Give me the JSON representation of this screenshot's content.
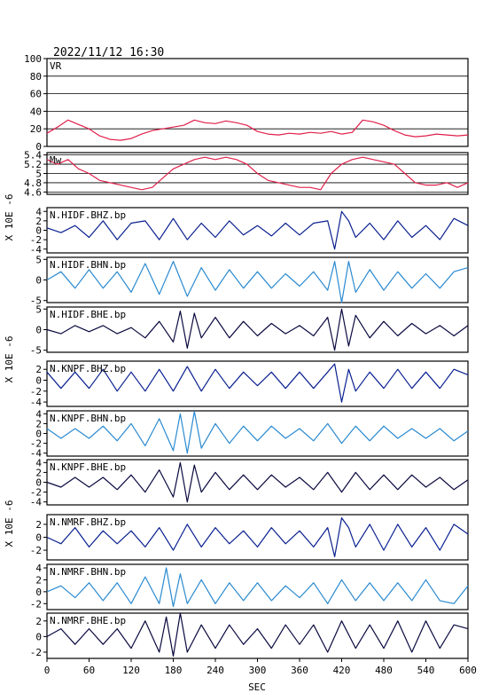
{
  "title": "2022/11/12 16:30",
  "xaxis": {
    "label": "SEC",
    "range": [
      0,
      600
    ],
    "ticks": [
      0,
      60,
      120,
      180,
      240,
      300,
      360,
      420,
      480,
      540,
      600
    ]
  },
  "ylabel_traces": "X 10E -6",
  "chart_data": [
    {
      "type": "line",
      "label": "VR",
      "color": "#e0204a",
      "gridlines": [
        20,
        40,
        60,
        80
      ],
      "ylim": [
        0,
        100
      ],
      "yticks": [
        0,
        20,
        40,
        60,
        80,
        100
      ],
      "x": [
        0,
        15,
        30,
        45,
        60,
        75,
        90,
        105,
        120,
        135,
        150,
        165,
        180,
        195,
        210,
        225,
        240,
        255,
        270,
        285,
        300,
        315,
        330,
        345,
        360,
        375,
        390,
        405,
        420,
        435,
        450,
        465,
        480,
        495,
        510,
        525,
        540,
        555,
        570,
        585,
        600
      ],
      "values": [
        15,
        22,
        30,
        25,
        20,
        12,
        8,
        7,
        9,
        14,
        18,
        20,
        22,
        24,
        30,
        27,
        26,
        29,
        27,
        24,
        17,
        14,
        13,
        15,
        14,
        16,
        15,
        17,
        14,
        16,
        30,
        28,
        24,
        18,
        13,
        11,
        12,
        14,
        13,
        12,
        13
      ]
    },
    {
      "type": "line",
      "label": "Mw",
      "color": "#e0204a",
      "gridlines": [
        4.6,
        4.8,
        5.0,
        5.2,
        5.4
      ],
      "ylim": [
        4.55,
        5.45
      ],
      "yticks": [
        4.6,
        4.8,
        5.0,
        5.2,
        5.4
      ],
      "x": [
        0,
        15,
        30,
        45,
        60,
        75,
        90,
        105,
        120,
        135,
        150,
        165,
        180,
        195,
        210,
        225,
        240,
        255,
        270,
        285,
        300,
        315,
        330,
        345,
        360,
        375,
        390,
        405,
        420,
        435,
        450,
        465,
        480,
        495,
        510,
        525,
        540,
        555,
        570,
        585,
        600
      ],
      "values": [
        5.3,
        5.2,
        5.3,
        5.1,
        5.0,
        4.85,
        4.8,
        4.75,
        4.7,
        4.65,
        4.7,
        4.9,
        5.1,
        5.2,
        5.3,
        5.35,
        5.3,
        5.35,
        5.3,
        5.2,
        5.0,
        4.85,
        4.8,
        4.75,
        4.7,
        4.7,
        4.65,
        5.0,
        5.2,
        5.3,
        5.35,
        5.3,
        5.25,
        5.2,
        5.0,
        4.8,
        4.75,
        4.75,
        4.8,
        4.7,
        4.8
      ]
    },
    {
      "type": "line",
      "label": "N.HIDF.BHZ.bp",
      "color": "#0a2090",
      "ylim": [
        -4.8,
        4.8
      ],
      "yticks": [
        -4,
        -2,
        0,
        2,
        4
      ],
      "x": [
        0,
        20,
        40,
        60,
        80,
        100,
        120,
        140,
        160,
        180,
        200,
        220,
        240,
        260,
        280,
        300,
        320,
        340,
        360,
        380,
        400,
        410,
        420,
        430,
        440,
        460,
        480,
        500,
        520,
        540,
        560,
        580,
        600
      ],
      "values": [
        0.5,
        -0.5,
        1.0,
        -1.5,
        2.0,
        -2.0,
        1.5,
        2.0,
        -2.0,
        2.5,
        -2.0,
        1.5,
        -1.5,
        2.0,
        -1.0,
        1.0,
        -1.2,
        1.5,
        -1.0,
        1.5,
        2.0,
        -4.0,
        4.0,
        2.0,
        -1.5,
        1.5,
        -2.0,
        2.0,
        -1.5,
        1.0,
        -2.0,
        2.5,
        1.0
      ]
    },
    {
      "type": "line",
      "label": "N.HIDF.BHN.bp",
      "color": "#2a8ad0",
      "ylim": [
        -5.5,
        5.5
      ],
      "yticks": [
        -5,
        0,
        5
      ],
      "x": [
        0,
        20,
        40,
        60,
        80,
        100,
        120,
        140,
        160,
        180,
        200,
        220,
        240,
        260,
        280,
        300,
        320,
        340,
        360,
        380,
        400,
        410,
        420,
        430,
        440,
        460,
        480,
        500,
        520,
        540,
        560,
        580,
        600
      ],
      "values": [
        0.0,
        2.0,
        -2.0,
        2.5,
        -2.0,
        2.0,
        -3.0,
        4.0,
        -3.5,
        4.5,
        -4.0,
        3.0,
        -2.5,
        2.5,
        -2.0,
        2.0,
        -2.0,
        1.5,
        -1.5,
        2.0,
        -2.5,
        4.5,
        -5.5,
        4.5,
        -3.0,
        2.5,
        -2.5,
        2.0,
        -2.0,
        1.5,
        -2.0,
        2.0,
        3.0
      ]
    },
    {
      "type": "line",
      "label": "N.HIDF.BHE.bp",
      "color": "#0a0a40",
      "ylim": [
        -5.5,
        5.5
      ],
      "yticks": [
        -5,
        0,
        5
      ],
      "x": [
        0,
        20,
        40,
        60,
        80,
        100,
        120,
        140,
        160,
        180,
        190,
        200,
        210,
        220,
        240,
        260,
        280,
        300,
        320,
        340,
        360,
        380,
        400,
        410,
        420,
        430,
        440,
        460,
        480,
        500,
        520,
        540,
        560,
        580,
        600
      ],
      "values": [
        0.0,
        -1.0,
        1.0,
        -0.5,
        1.0,
        -1.0,
        0.5,
        -2.0,
        2.0,
        -3.0,
        4.5,
        -4.5,
        4.0,
        -2.0,
        3.0,
        -2.0,
        2.0,
        -1.5,
        1.5,
        -1.0,
        1.0,
        -1.5,
        3.0,
        -5.0,
        5.0,
        -4.0,
        3.5,
        -2.0,
        2.0,
        -1.5,
        1.5,
        -1.0,
        1.0,
        -1.5,
        1.0
      ]
    },
    {
      "type": "line",
      "label": "N.KNPF.BHZ.bp",
      "color": "#0a2090",
      "ylim": [
        -4.8,
        3.5
      ],
      "yticks": [
        -4,
        -2,
        0,
        2
      ],
      "x": [
        0,
        20,
        40,
        60,
        80,
        100,
        120,
        140,
        160,
        180,
        200,
        220,
        240,
        260,
        280,
        300,
        320,
        340,
        360,
        380,
        400,
        410,
        420,
        430,
        440,
        460,
        480,
        500,
        520,
        540,
        560,
        580,
        600
      ],
      "values": [
        1.5,
        -1.5,
        1.5,
        -1.5,
        2.0,
        -2.0,
        1.5,
        -2.0,
        2.0,
        -2.0,
        2.5,
        -2.0,
        2.0,
        -1.5,
        1.5,
        -1.0,
        1.5,
        -1.5,
        1.5,
        -1.5,
        1.5,
        3.0,
        -4.0,
        2.0,
        -2.0,
        1.5,
        -1.5,
        2.0,
        -1.5,
        1.5,
        -1.5,
        2.0,
        1.0
      ]
    },
    {
      "type": "line",
      "label": "N.KNPF.BHN.bp",
      "color": "#2a8ad0",
      "ylim": [
        -4.6,
        4.6
      ],
      "yticks": [
        -4,
        -2,
        0,
        2,
        4
      ],
      "x": [
        0,
        20,
        40,
        60,
        80,
        100,
        120,
        140,
        160,
        180,
        190,
        200,
        210,
        220,
        240,
        260,
        280,
        300,
        320,
        340,
        360,
        380,
        400,
        420,
        440,
        460,
        480,
        500,
        520,
        540,
        560,
        580,
        600
      ],
      "values": [
        1.0,
        -1.0,
        1.0,
        -1.0,
        1.5,
        -1.5,
        2.0,
        -2.5,
        3.0,
        -3.5,
        4.0,
        -4.0,
        4.5,
        -3.0,
        2.0,
        -2.0,
        1.5,
        -1.5,
        1.5,
        -1.0,
        1.0,
        -1.5,
        2.0,
        -2.0,
        1.5,
        -1.5,
        1.5,
        -1.0,
        1.0,
        -1.0,
        1.0,
        -1.5,
        0.5
      ]
    },
    {
      "type": "line",
      "label": "N.KNPF.BHE.bp",
      "color": "#0a0a40",
      "ylim": [
        -4.6,
        4.6
      ],
      "yticks": [
        -4,
        -2,
        0,
        2,
        4
      ],
      "x": [
        0,
        20,
        40,
        60,
        80,
        100,
        120,
        140,
        160,
        180,
        190,
        200,
        210,
        220,
        240,
        260,
        280,
        300,
        320,
        340,
        360,
        380,
        400,
        420,
        440,
        460,
        480,
        500,
        520,
        540,
        560,
        580,
        600
      ],
      "values": [
        0.0,
        -1.0,
        1.0,
        -1.0,
        1.0,
        -1.5,
        1.5,
        -2.0,
        2.5,
        -3.0,
        4.0,
        -4.0,
        3.5,
        -2.0,
        2.0,
        -1.5,
        1.5,
        -1.5,
        1.5,
        -1.0,
        1.0,
        -1.5,
        2.0,
        -2.0,
        2.0,
        -1.5,
        1.5,
        -1.5,
        1.5,
        -1.0,
        1.0,
        -1.5,
        0.5
      ]
    },
    {
      "type": "line",
      "label": "N.NMRF.BHZ.bp",
      "color": "#0a2090",
      "ylim": [
        -3.5,
        3.5
      ],
      "yticks": [
        -2,
        0,
        2
      ],
      "x": [
        0,
        20,
        40,
        60,
        80,
        100,
        120,
        140,
        160,
        180,
        200,
        220,
        240,
        260,
        280,
        300,
        320,
        340,
        360,
        380,
        400,
        410,
        420,
        430,
        440,
        460,
        480,
        500,
        520,
        540,
        560,
        580,
        600
      ],
      "values": [
        0.0,
        -1.0,
        1.5,
        -1.5,
        1.0,
        -1.0,
        1.0,
        -1.5,
        1.5,
        -2.0,
        2.0,
        -1.5,
        1.5,
        -1.0,
        1.0,
        -1.5,
        1.5,
        -1.0,
        1.0,
        -1.5,
        1.5,
        -3.0,
        3.0,
        1.5,
        -1.5,
        2.0,
        -2.0,
        2.0,
        -1.5,
        1.5,
        -2.0,
        2.0,
        0.5
      ]
    },
    {
      "type": "line",
      "label": "N.NMRF.BHN.bp",
      "color": "#2a8ad0",
      "ylim": [
        -3.0,
        4.6
      ],
      "yticks": [
        -2,
        0,
        2,
        4
      ],
      "x": [
        0,
        20,
        40,
        60,
        80,
        100,
        120,
        140,
        160,
        170,
        180,
        190,
        200,
        220,
        240,
        260,
        280,
        300,
        320,
        340,
        360,
        380,
        400,
        420,
        440,
        460,
        480,
        500,
        520,
        540,
        560,
        580,
        600
      ],
      "values": [
        0.0,
        1.0,
        -1.0,
        1.5,
        -1.5,
        1.5,
        -2.0,
        2.5,
        -2.0,
        4.0,
        -2.5,
        3.0,
        -2.0,
        2.0,
        -2.0,
        1.5,
        -1.5,
        1.5,
        -1.5,
        1.0,
        -1.0,
        1.5,
        -2.0,
        2.0,
        -1.5,
        1.5,
        -1.5,
        1.5,
        -1.5,
        2.0,
        -1.5,
        -2.0,
        1.0
      ]
    },
    {
      "type": "line",
      "label": "N.NMRF.BHE.bp",
      "color": "#0a0a40",
      "ylim": [
        -2.8,
        3.0
      ],
      "yticks": [
        -2,
        0,
        2
      ],
      "x": [
        0,
        20,
        40,
        60,
        80,
        100,
        120,
        140,
        160,
        170,
        180,
        190,
        200,
        220,
        240,
        260,
        280,
        300,
        320,
        340,
        360,
        380,
        400,
        420,
        440,
        460,
        480,
        500,
        520,
        540,
        560,
        580,
        600
      ],
      "values": [
        0.0,
        1.0,
        -1.0,
        1.0,
        -1.0,
        1.0,
        -1.5,
        2.0,
        -2.0,
        2.5,
        -2.5,
        3.0,
        -2.0,
        1.5,
        -1.5,
        1.5,
        -1.0,
        1.0,
        -1.5,
        1.5,
        -1.0,
        1.5,
        -2.0,
        2.0,
        -1.5,
        1.5,
        -1.5,
        2.0,
        -2.0,
        2.0,
        -1.5,
        1.5,
        1.0
      ]
    }
  ]
}
